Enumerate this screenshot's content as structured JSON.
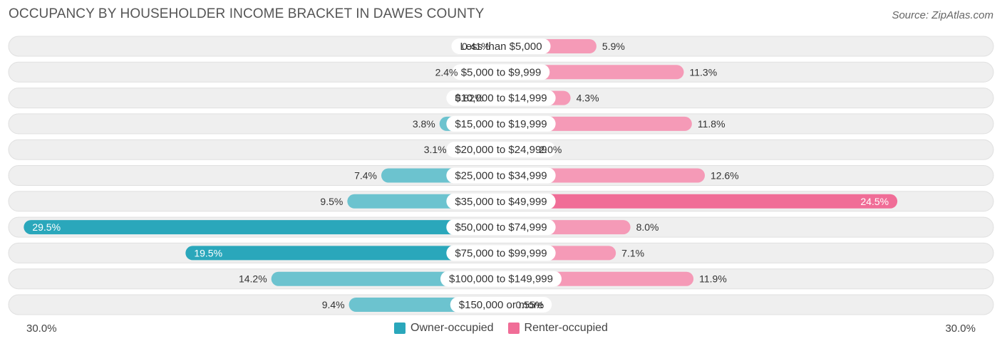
{
  "title": "OCCUPANCY BY HOUSEHOLDER INCOME BRACKET IN DAWES COUNTY",
  "source": "Source: ZipAtlas.com",
  "axis": {
    "left_label": "30.0%",
    "right_label": "30.0%"
  },
  "legend": {
    "owner": "Owner-occupied",
    "renter": "Renter-occupied"
  },
  "colors": {
    "owner": "#6cc3cf",
    "owner_strong": "#2aa7bb",
    "renter": "#f59ab7",
    "renter_strong": "#f06d97",
    "row_bg": "#efefef"
  },
  "chart_data": {
    "type": "bar",
    "orientation": "horizontal-diverging",
    "xlim": [
      -30,
      30
    ],
    "categories": [
      "Less than $5,000",
      "$5,000 to $9,999",
      "$10,000 to $14,999",
      "$15,000 to $19,999",
      "$20,000 to $24,999",
      "$25,000 to $34,999",
      "$35,000 to $49,999",
      "$50,000 to $74,999",
      "$75,000 to $99,999",
      "$100,000 to $149,999",
      "$150,000 or more"
    ],
    "series": [
      {
        "name": "Owner-occupied",
        "values": [
          0.41,
          2.4,
          0.82,
          3.8,
          3.1,
          7.4,
          9.5,
          29.5,
          19.5,
          14.2,
          9.4
        ],
        "labels": [
          "0.41%",
          "2.4%",
          "0.82%",
          "3.8%",
          "3.1%",
          "7.4%",
          "9.5%",
          "29.5%",
          "19.5%",
          "14.2%",
          "9.4%"
        ]
      },
      {
        "name": "Renter-occupied",
        "values": [
          5.9,
          11.3,
          4.3,
          11.8,
          2.0,
          12.6,
          24.5,
          8.0,
          7.1,
          11.9,
          0.55
        ],
        "labels": [
          "5.9%",
          "11.3%",
          "4.3%",
          "11.8%",
          "2.0%",
          "12.6%",
          "24.5%",
          "8.0%",
          "7.1%",
          "11.9%",
          "0.55%"
        ]
      }
    ]
  }
}
